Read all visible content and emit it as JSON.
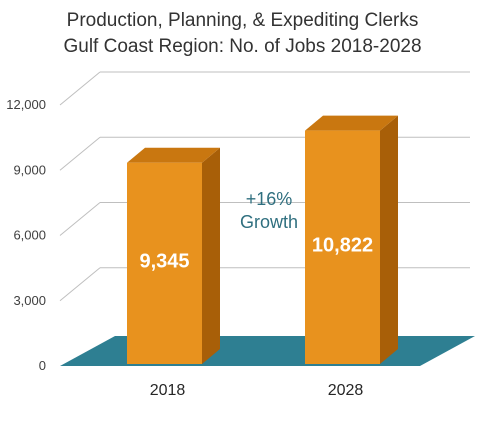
{
  "chart_data": {
    "type": "bar",
    "title": "Production, Planning, & Expediting Clerks",
    "subtitle": "Gulf Coast Region: No. of Jobs 2018-2028",
    "categories": [
      "2018",
      "2028"
    ],
    "values": [
      9345,
      10822
    ],
    "data_labels": [
      "9,345",
      "10,822"
    ],
    "y_ticks": [
      0,
      3000,
      6000,
      9000,
      12000
    ],
    "y_tick_labels": [
      "0",
      "3,000",
      "6,000",
      "9,000",
      "12,000"
    ],
    "ylim": [
      0,
      12000
    ],
    "annotation": {
      "line1": "+16%",
      "line2": "Growth"
    },
    "grid": true,
    "style": "3d-column",
    "colors": {
      "bar_front": "#E8921E",
      "bar_side": "#A85F08",
      "bar_top": "#C97710",
      "floor": "#2E7F92",
      "grid": "#bfbfbf",
      "annotation": "#2f6f7f"
    }
  }
}
